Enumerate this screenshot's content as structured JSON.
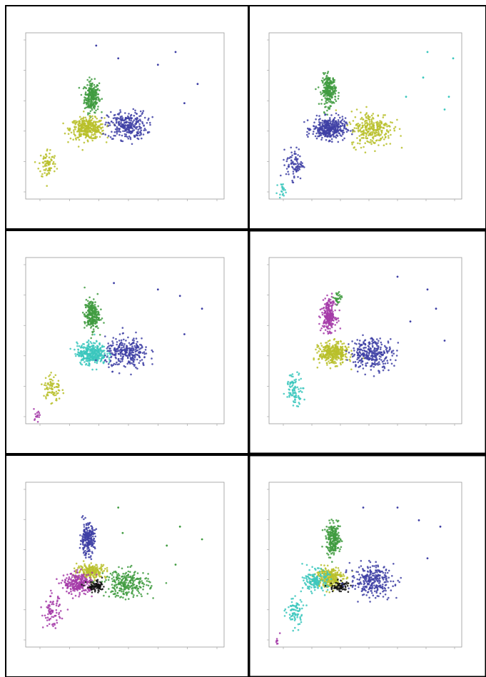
{
  "colors": {
    "green": "#3f9b3f",
    "olive": "#b9bf2a",
    "blue": "#3e3fa5",
    "cyan": "#3bc7bd",
    "magenta": "#a43ba8",
    "black": "#111111",
    "axis": "#9a9a9a"
  },
  "chart_data": [
    {
      "type": "scatter",
      "panel": "top-left",
      "clusters": [
        {
          "name": "",
          "color": "green",
          "center": [
            0.7,
            0.6
          ],
          "spread": [
            0.15,
            0.22
          ],
          "n": 260
        },
        {
          "name": "",
          "color": "olive",
          "center": [
            0.6,
            0.1
          ],
          "spread": [
            0.35,
            0.15
          ],
          "n": 360
        },
        {
          "name": "",
          "color": "olive",
          "center": [
            -0.3,
            -0.45
          ],
          "spread": [
            0.18,
            0.22
          ],
          "n": 80
        },
        {
          "name": "",
          "color": "blue",
          "center": [
            1.5,
            0.15
          ],
          "spread": [
            0.4,
            0.2
          ],
          "n": 280
        }
      ],
      "outliers": [
        [
          2.2,
          1.1
        ],
        [
          2.6,
          1.3
        ],
        [
          3.1,
          0.8
        ],
        [
          2.8,
          0.5
        ],
        [
          1.3,
          1.2
        ],
        [
          0.8,
          1.4
        ]
      ]
    },
    {
      "type": "scatter",
      "panel": "top-right",
      "clusters": [
        {
          "name": "",
          "color": "green",
          "center": [
            0.6,
            0.7
          ],
          "spread": [
            0.15,
            0.22
          ],
          "n": 240
        },
        {
          "name": "",
          "color": "blue",
          "center": [
            0.6,
            0.1
          ],
          "spread": [
            0.35,
            0.15
          ],
          "n": 380
        },
        {
          "name": "",
          "color": "blue",
          "center": [
            -0.2,
            -0.45
          ],
          "spread": [
            0.18,
            0.22
          ],
          "n": 90
        },
        {
          "name": "",
          "color": "olive",
          "center": [
            1.6,
            0.1
          ],
          "spread": [
            0.45,
            0.25
          ],
          "n": 280
        },
        {
          "name": "",
          "color": "cyan",
          "center": [
            -0.5,
            -0.85
          ],
          "spread": [
            0.08,
            0.08
          ],
          "n": 20
        }
      ],
      "outliers": [
        [
          2.4,
          0.6
        ],
        [
          2.8,
          0.9
        ],
        [
          3.3,
          0.4
        ],
        [
          2.9,
          1.3
        ],
        [
          3.5,
          1.2
        ],
        [
          3.4,
          0.6
        ]
      ]
    },
    {
      "type": "scatter",
      "panel": "middle-left",
      "clusters": [
        {
          "name": "",
          "color": "green",
          "center": [
            0.7,
            0.7
          ],
          "spread": [
            0.15,
            0.22
          ],
          "n": 240
        },
        {
          "name": "",
          "color": "cyan",
          "center": [
            0.7,
            0.1
          ],
          "spread": [
            0.3,
            0.15
          ],
          "n": 360
        },
        {
          "name": "",
          "color": "olive",
          "center": [
            -0.2,
            -0.45
          ],
          "spread": [
            0.18,
            0.22
          ],
          "n": 80
        },
        {
          "name": "",
          "color": "magenta",
          "center": [
            -0.55,
            -0.85
          ],
          "spread": [
            0.08,
            0.07
          ],
          "n": 15
        },
        {
          "name": "",
          "color": "blue",
          "center": [
            1.5,
            0.1
          ],
          "spread": [
            0.45,
            0.22
          ],
          "n": 280
        }
      ],
      "outliers": [
        [
          2.2,
          1.1
        ],
        [
          2.7,
          1.0
        ],
        [
          3.2,
          0.8
        ],
        [
          2.8,
          0.4
        ],
        [
          1.2,
          1.2
        ]
      ]
    },
    {
      "type": "scatter",
      "panel": "middle-right",
      "clusters": [
        {
          "name": "",
          "color": "magenta",
          "center": [
            0.6,
            0.7
          ],
          "spread": [
            0.15,
            0.22
          ],
          "n": 240
        },
        {
          "name": "",
          "color": "green",
          "center": [
            0.8,
            0.95
          ],
          "spread": [
            0.08,
            0.1
          ],
          "n": 30
        },
        {
          "name": "",
          "color": "olive",
          "center": [
            0.7,
            0.1
          ],
          "spread": [
            0.3,
            0.15
          ],
          "n": 360
        },
        {
          "name": "",
          "color": "cyan",
          "center": [
            -0.2,
            -0.45
          ],
          "spread": [
            0.18,
            0.22
          ],
          "n": 90
        },
        {
          "name": "",
          "color": "blue",
          "center": [
            1.6,
            0.1
          ],
          "spread": [
            0.45,
            0.22
          ],
          "n": 300
        }
      ],
      "outliers": [
        [
          2.2,
          1.3
        ],
        [
          2.9,
          1.1
        ],
        [
          3.1,
          0.8
        ],
        [
          3.3,
          0.3
        ],
        [
          2.5,
          0.6
        ]
      ]
    },
    {
      "type": "scatter",
      "panel": "bottom-left",
      "clusters": [
        {
          "name": "",
          "color": "blue",
          "center": [
            0.6,
            0.7
          ],
          "spread": [
            0.15,
            0.22
          ],
          "n": 240
        },
        {
          "name": "",
          "color": "olive",
          "center": [
            0.7,
            0.2
          ],
          "spread": [
            0.3,
            0.1
          ],
          "n": 200
        },
        {
          "name": "",
          "color": "magenta",
          "center": [
            0.4,
            0.0
          ],
          "spread": [
            0.3,
            0.15
          ],
          "n": 260
        },
        {
          "name": "",
          "color": "magenta",
          "center": [
            -0.2,
            -0.45
          ],
          "spread": [
            0.18,
            0.22
          ],
          "n": 80
        },
        {
          "name": "",
          "color": "black",
          "center": [
            0.8,
            -0.05
          ],
          "spread": [
            0.2,
            0.08
          ],
          "n": 80
        },
        {
          "name": "",
          "color": "green",
          "center": [
            1.5,
            0.0
          ],
          "spread": [
            0.45,
            0.2
          ],
          "n": 260
        }
      ],
      "outliers": [
        [
          2.4,
          0.6
        ],
        [
          2.7,
          0.9
        ],
        [
          3.2,
          0.7
        ],
        [
          2.6,
          0.3
        ],
        [
          1.3,
          1.2
        ],
        [
          1.4,
          0.8
        ]
      ]
    },
    {
      "type": "scatter",
      "panel": "bottom-right",
      "clusters": [
        {
          "name": "",
          "color": "green",
          "center": [
            0.7,
            0.7
          ],
          "spread": [
            0.15,
            0.22
          ],
          "n": 240
        },
        {
          "name": "",
          "color": "olive",
          "center": [
            0.6,
            0.1
          ],
          "spread": [
            0.3,
            0.15
          ],
          "n": 260
        },
        {
          "name": "",
          "color": "cyan",
          "center": [
            0.3,
            0.05
          ],
          "spread": [
            0.25,
            0.15
          ],
          "n": 150
        },
        {
          "name": "",
          "color": "cyan",
          "center": [
            -0.2,
            -0.45
          ],
          "spread": [
            0.18,
            0.22
          ],
          "n": 80
        },
        {
          "name": "",
          "color": "black",
          "center": [
            0.85,
            -0.05
          ],
          "spread": [
            0.2,
            0.08
          ],
          "n": 70
        },
        {
          "name": "",
          "color": "magenta",
          "center": [
            -0.6,
            -0.9
          ],
          "spread": [
            0.05,
            0.05
          ],
          "n": 8
        },
        {
          "name": "",
          "color": "blue",
          "center": [
            1.6,
            0.05
          ],
          "spread": [
            0.45,
            0.22
          ],
          "n": 280
        }
      ],
      "outliers": [
        [
          2.2,
          1.2
        ],
        [
          2.7,
          1.0
        ],
        [
          3.2,
          0.9
        ],
        [
          2.9,
          0.4
        ],
        [
          1.4,
          1.2
        ]
      ]
    }
  ]
}
